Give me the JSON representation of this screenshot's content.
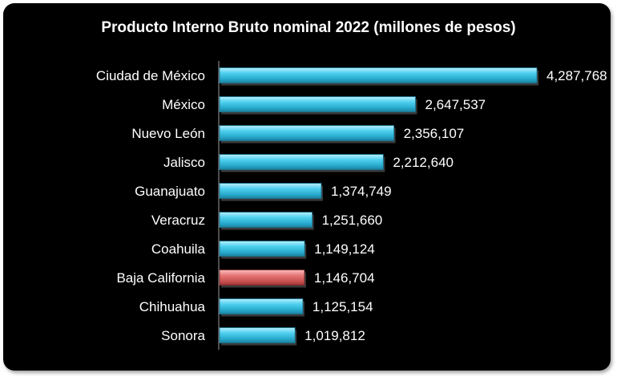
{
  "chart_data": {
    "type": "bar",
    "orientation": "horizontal",
    "title": "Producto Interno Bruto nominal 2022 (millones de pesos)",
    "xlabel": "",
    "ylabel": "",
    "categories": [
      "Ciudad de México",
      "México",
      "Nuevo León",
      "Jalisco",
      "Guanajuato",
      "Veracruz",
      "Coahuila",
      "Baja California",
      "Chihuahua",
      "Sonora"
    ],
    "values": [
      4287768,
      2647537,
      2356107,
      2212640,
      1374749,
      1251660,
      1149124,
      1146704,
      1125154,
      1019812
    ],
    "value_labels": [
      "4,287,768",
      "2,647,537",
      "2,356,107",
      "2,212,640",
      "1,374,749",
      "1,251,660",
      "1,149,124",
      "1,146,704",
      "1,125,154",
      "1,019,812"
    ],
    "xlim": [
      0,
      4287768
    ],
    "bar_color": "#3fc6e6",
    "highlight_color": "#e06a6a",
    "highlight_category": "Baja California",
    "background": "#000000",
    "grid": false,
    "legend": "none"
  }
}
